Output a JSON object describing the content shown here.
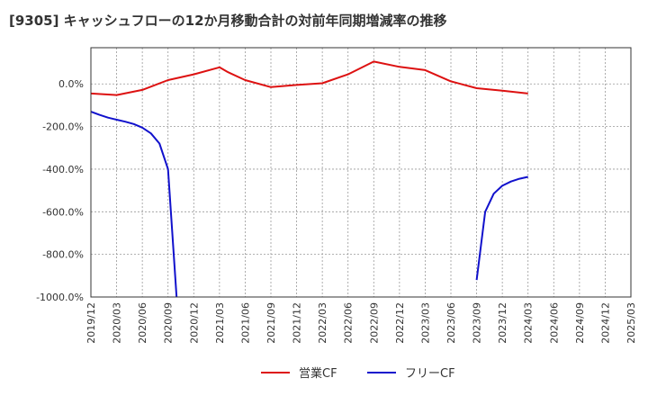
{
  "chart_data": {
    "type": "line",
    "title": "[9305]  キャッシュフローの12か月移動合計の対前年同期増減率の推移",
    "xlabel": "",
    "ylabel": "",
    "ylim": [
      -1000,
      170
    ],
    "yticks": [
      0,
      -200,
      -400,
      -600,
      -800,
      -1000
    ],
    "ytick_labels": [
      "0.0%",
      "-200.0%",
      "-400.0%",
      "-600.0%",
      "-800.0%",
      "-1000.0%"
    ],
    "xlim": [
      "2019/12",
      "2025/03"
    ],
    "xtick_labels": [
      "2019/12",
      "2020/03",
      "2020/06",
      "2020/09",
      "2020/12",
      "2021/03",
      "2021/06",
      "2021/09",
      "2021/12",
      "2022/03",
      "2022/06",
      "2022/09",
      "2022/12",
      "2023/03",
      "2023/06",
      "2023/09",
      "2023/12",
      "2024/03",
      "2024/06",
      "2024/09",
      "2024/12",
      "2025/03"
    ],
    "grid": true,
    "legend_position": "bottom-center",
    "series": [
      {
        "name": "営業CF",
        "color": "#dd1111",
        "points": [
          [
            "2019/12",
            -45
          ],
          [
            "2020/03",
            -52
          ],
          [
            "2020/06",
            -28
          ],
          [
            "2020/09",
            18
          ],
          [
            "2020/12",
            45
          ],
          [
            "2021/03",
            78
          ],
          [
            "2021/04",
            55
          ],
          [
            "2021/06",
            18
          ],
          [
            "2021/09",
            -15
          ],
          [
            "2021/12",
            -5
          ],
          [
            "2022/03",
            3
          ],
          [
            "2022/06",
            45
          ],
          [
            "2022/09",
            105
          ],
          [
            "2022/12",
            80
          ],
          [
            "2023/03",
            65
          ],
          [
            "2023/06",
            12
          ],
          [
            "2023/09",
            -20
          ],
          [
            "2023/12",
            -32
          ],
          [
            "2024/03",
            -45
          ]
        ]
      },
      {
        "name": "フリーCF",
        "color": "#1111cc",
        "segments": [
          [
            [
              "2019/12",
              -130
            ],
            [
              "2020/01",
              -145
            ],
            [
              "2020/02",
              -158
            ],
            [
              "2020/03",
              -168
            ],
            [
              "2020/04",
              -177
            ],
            [
              "2020/05",
              -188
            ],
            [
              "2020/06",
              -205
            ],
            [
              "2020/07",
              -232
            ],
            [
              "2020/08",
              -280
            ],
            [
              "2020/09",
              -400
            ],
            [
              "2020/10",
              -1000
            ]
          ],
          [
            [
              "2023/09",
              -920
            ],
            [
              "2023/10",
              -600
            ],
            [
              "2023/11",
              -515
            ],
            [
              "2023/12",
              -478
            ],
            [
              "2024/01",
              -458
            ],
            [
              "2024/02",
              -445
            ],
            [
              "2024/03",
              -436
            ]
          ]
        ]
      }
    ]
  }
}
